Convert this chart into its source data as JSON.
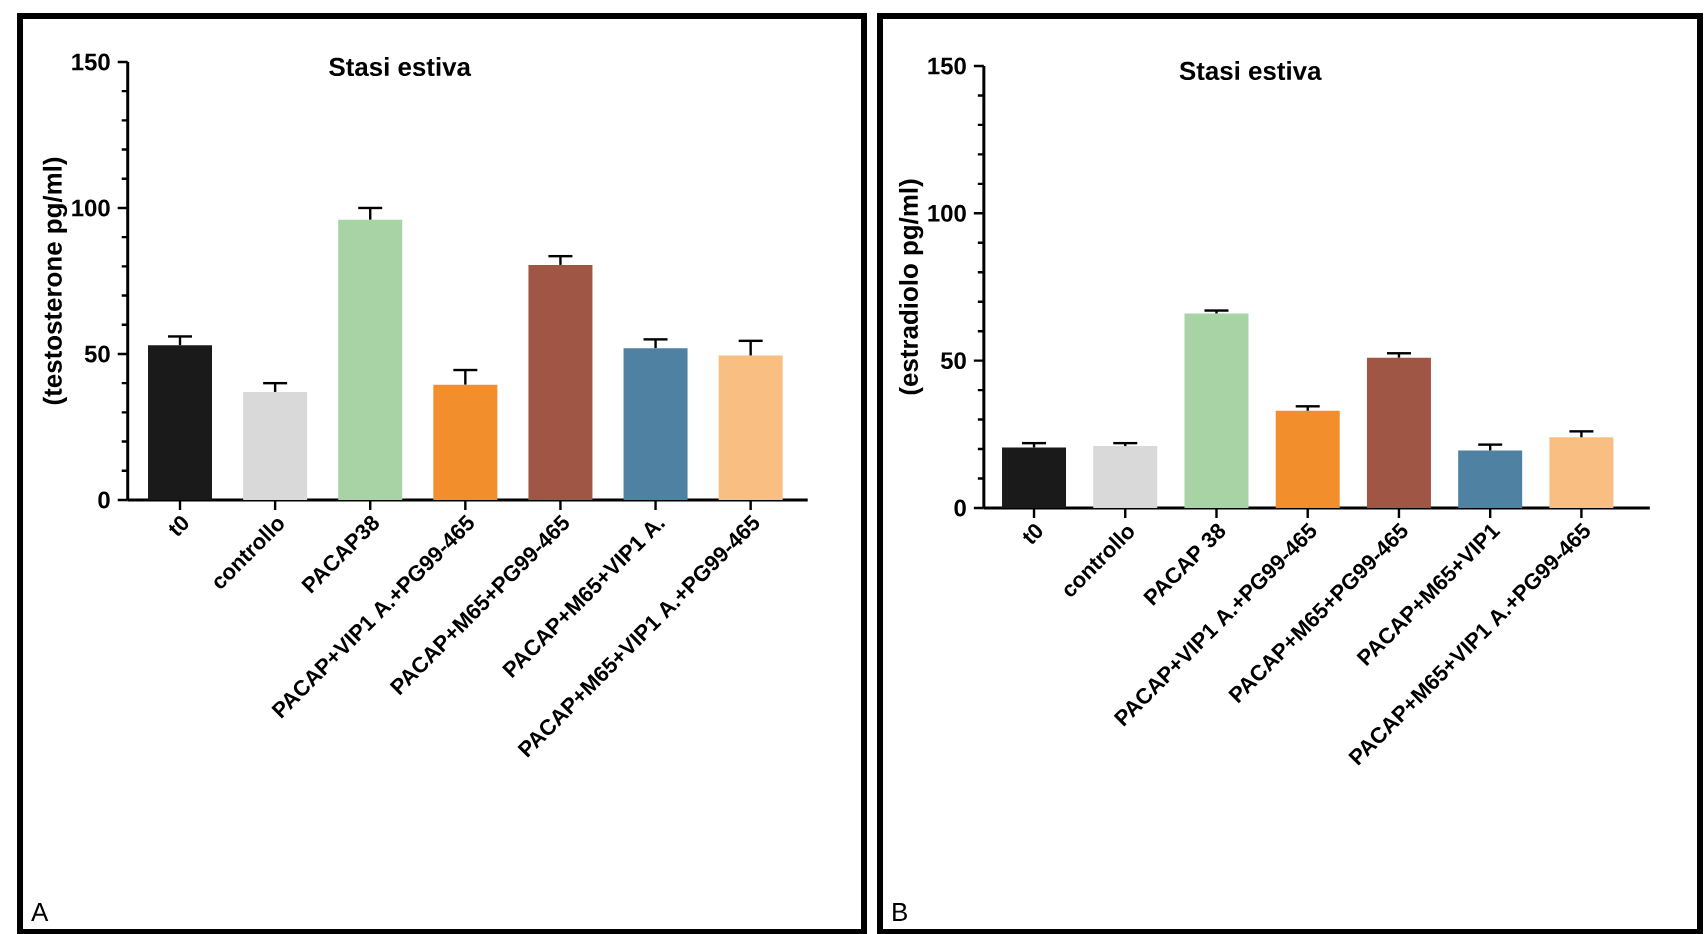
{
  "chart_data": [
    {
      "type": "bar",
      "title": "Stasi estiva",
      "ylabel": "(testosterone pg/ml)",
      "categories": [
        "t0",
        "controllo",
        "PACAP38",
        "PACAP+VIP1 A.+PG99-465",
        "PACAP+M65+PG99-465",
        "PACAP+M65+VIP1 A.",
        "PACAP+M65+VIP1 A.+PG99-465"
      ],
      "values": [
        53,
        37,
        96,
        39.5,
        80.5,
        52,
        49.5
      ],
      "errors": [
        3,
        3,
        4,
        5,
        3,
        3,
        5
      ],
      "colors": [
        "#1a1a1a",
        "#d9d9d9",
        "#a8d3a4",
        "#f28e2b",
        "#9f5644",
        "#4e81a2",
        "#f9bf82"
      ],
      "ylim": [
        0,
        150
      ],
      "yticks": [
        0,
        50,
        100,
        150
      ],
      "annotations": [
        "A"
      ]
    },
    {
      "type": "bar",
      "title": "Stasi estiva",
      "ylabel": "(estradiolo pg/ml)",
      "categories": [
        "t0",
        "controllo",
        "PACAP 38",
        "PACAP+VIP1 A.+PG99-465",
        "PACAP+M65+PG99-465",
        "PACAP+M65+VIP1",
        "PACAP+M65+VIP1 A.+PG99-465"
      ],
      "values": [
        20.5,
        21,
        66,
        33,
        51,
        19.5,
        24
      ],
      "errors": [
        1.5,
        1,
        1,
        1.5,
        1.5,
        2,
        2
      ],
      "colors": [
        "#1a1a1a",
        "#d9d9d9",
        "#a8d3a4",
        "#f28e2b",
        "#9f5644",
        "#4e81a2",
        "#f9bf82"
      ],
      "ylim": [
        0,
        150
      ],
      "yticks": [
        0,
        50,
        100,
        150
      ],
      "annotations": [
        "B"
      ]
    }
  ]
}
